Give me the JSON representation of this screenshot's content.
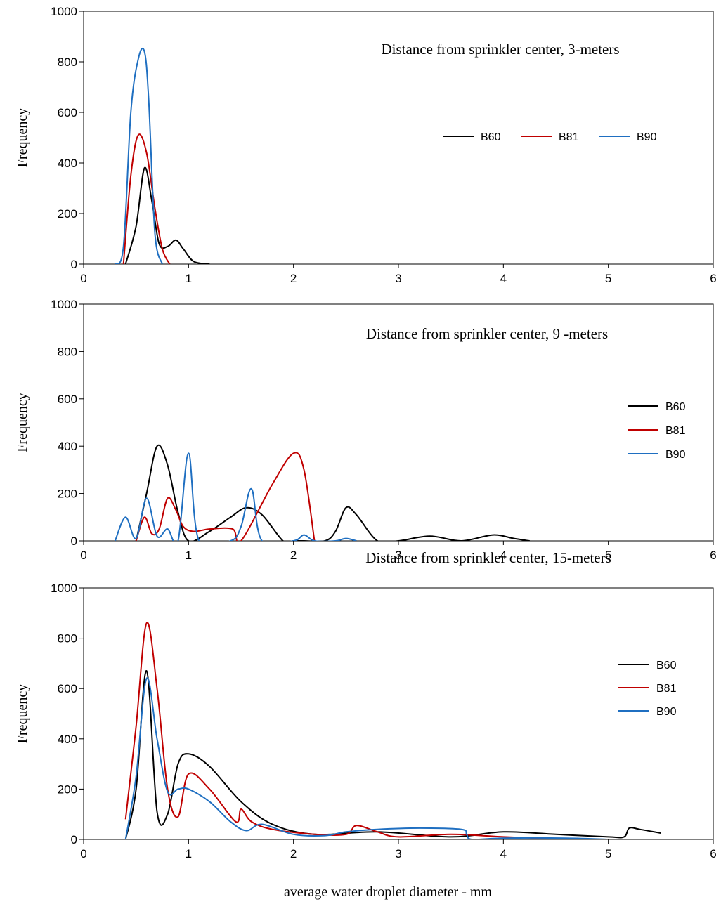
{
  "xlabel": "average water droplet diameter - mm",
  "colors": {
    "B60": "#000000",
    "B81": "#c00000",
    "B90": "#1f6fc1"
  },
  "chart_data": [
    {
      "type": "line",
      "title": "Distance from sprinkler center, 3-meters",
      "ylabel": "Frequency",
      "xlim": [
        0,
        6
      ],
      "ylim": [
        0,
        1000
      ],
      "xticks": [
        0,
        1,
        2,
        3,
        4,
        5,
        6
      ],
      "yticks": [
        0,
        200,
        400,
        600,
        800,
        1000
      ],
      "legend": "right, single row",
      "series": [
        {
          "name": "B60",
          "color": "#000000",
          "x": [
            0.4,
            0.5,
            0.58,
            0.65,
            0.72,
            0.8,
            0.88,
            0.95,
            1.05,
            1.2
          ],
          "y": [
            0,
            150,
            380,
            250,
            80,
            70,
            95,
            60,
            10,
            0
          ]
        },
        {
          "name": "B81",
          "color": "#c00000",
          "x": [
            0.38,
            0.45,
            0.52,
            0.6,
            0.68,
            0.75,
            0.82
          ],
          "y": [
            0,
            350,
            510,
            440,
            220,
            60,
            0
          ]
        },
        {
          "name": "B90",
          "color": "#1f6fc1",
          "x": [
            0.3,
            0.38,
            0.45,
            0.52,
            0.58,
            0.62,
            0.68,
            0.75
          ],
          "y": [
            0,
            70,
            600,
            810,
            840,
            650,
            120,
            0
          ]
        }
      ]
    },
    {
      "type": "line",
      "title": "Distance from sprinkler center, 9 -meters",
      "ylabel": "Frequency",
      "xlim": [
        0,
        6
      ],
      "ylim": [
        0,
        1000
      ],
      "xticks": [
        0,
        1,
        2,
        3,
        4,
        5,
        6
      ],
      "yticks": [
        0,
        200,
        400,
        600,
        800,
        1000
      ],
      "legend": "right, stacked",
      "series": [
        {
          "name": "B60",
          "color": "#000000",
          "x": [
            0.5,
            0.6,
            0.7,
            0.8,
            0.9,
            1.0,
            1.2,
            1.4,
            1.55,
            1.7,
            1.9,
            2.0,
            2.1,
            2.3,
            2.4,
            2.5,
            2.6,
            2.8,
            3.0,
            3.3,
            3.6,
            3.9,
            4.1,
            4.25
          ],
          "y": [
            0,
            200,
            400,
            320,
            120,
            0,
            40,
            100,
            140,
            110,
            0,
            0,
            0,
            0,
            40,
            140,
            110,
            0,
            0,
            20,
            0,
            25,
            10,
            0
          ]
        },
        {
          "name": "B81",
          "color": "#c00000",
          "x": [
            0.5,
            0.58,
            0.65,
            0.72,
            0.8,
            0.88,
            0.95,
            1.05,
            1.2,
            1.42,
            1.5,
            1.8,
            2.0,
            2.1,
            2.2
          ],
          "y": [
            0,
            100,
            30,
            50,
            180,
            130,
            60,
            40,
            50,
            50,
            0,
            240,
            370,
            300,
            0
          ]
        },
        {
          "name": "B90",
          "color": "#1f6fc1",
          "x": [
            0.3,
            0.4,
            0.5,
            0.6,
            0.7,
            0.8,
            0.9,
            1.0,
            1.1,
            1.4,
            1.5,
            1.6,
            1.7,
            2.0,
            2.1,
            2.2,
            2.4,
            2.5,
            2.6
          ],
          "y": [
            0,
            100,
            10,
            180,
            20,
            50,
            0,
            370,
            0,
            0,
            60,
            220,
            0,
            0,
            25,
            0,
            0,
            10,
            0
          ]
        }
      ]
    },
    {
      "type": "line",
      "title": "Distance from sprinkler center, 15-meters",
      "ylabel": "Frequency",
      "xlim": [
        0,
        6
      ],
      "ylim": [
        0,
        1000
      ],
      "xticks": [
        0,
        1,
        2,
        3,
        4,
        5,
        6
      ],
      "yticks": [
        0,
        200,
        400,
        600,
        800,
        1000
      ],
      "legend": "right, stacked",
      "series": [
        {
          "name": "B60",
          "color": "#000000",
          "x": [
            0.4,
            0.5,
            0.6,
            0.7,
            0.8,
            0.9,
            1.0,
            1.2,
            1.5,
            1.8,
            2.2,
            2.8,
            3.5,
            4.0,
            4.5,
            5.0,
            5.15,
            5.2,
            5.3,
            5.5
          ],
          "y": [
            0,
            200,
            670,
            110,
            100,
            300,
            340,
            290,
            150,
            60,
            20,
            30,
            10,
            30,
            20,
            10,
            10,
            45,
            40,
            25
          ]
        },
        {
          "name": "B81",
          "color": "#c00000",
          "x": [
            0.4,
            0.5,
            0.6,
            0.7,
            0.8,
            0.9,
            1.0,
            1.2,
            1.45,
            1.5,
            1.6,
            1.8,
            2.2,
            2.5,
            2.6,
            2.8,
            3.0,
            3.5,
            4.0,
            4.6
          ],
          "y": [
            80,
            450,
            860,
            600,
            200,
            90,
            260,
            200,
            70,
            120,
            70,
            40,
            20,
            20,
            55,
            30,
            10,
            20,
            10,
            0
          ]
        },
        {
          "name": "B90",
          "color": "#1f6fc1",
          "x": [
            0.4,
            0.5,
            0.6,
            0.7,
            0.8,
            0.9,
            1.0,
            1.2,
            1.4,
            1.55,
            1.7,
            2.0,
            2.3,
            2.5,
            2.8,
            3.2,
            3.6,
            3.65,
            3.7,
            4.0,
            4.6,
            5.0
          ],
          "y": [
            0,
            250,
            640,
            400,
            190,
            200,
            200,
            150,
            70,
            35,
            60,
            20,
            15,
            30,
            40,
            45,
            40,
            20,
            0,
            5,
            5,
            0
          ]
        }
      ]
    }
  ]
}
